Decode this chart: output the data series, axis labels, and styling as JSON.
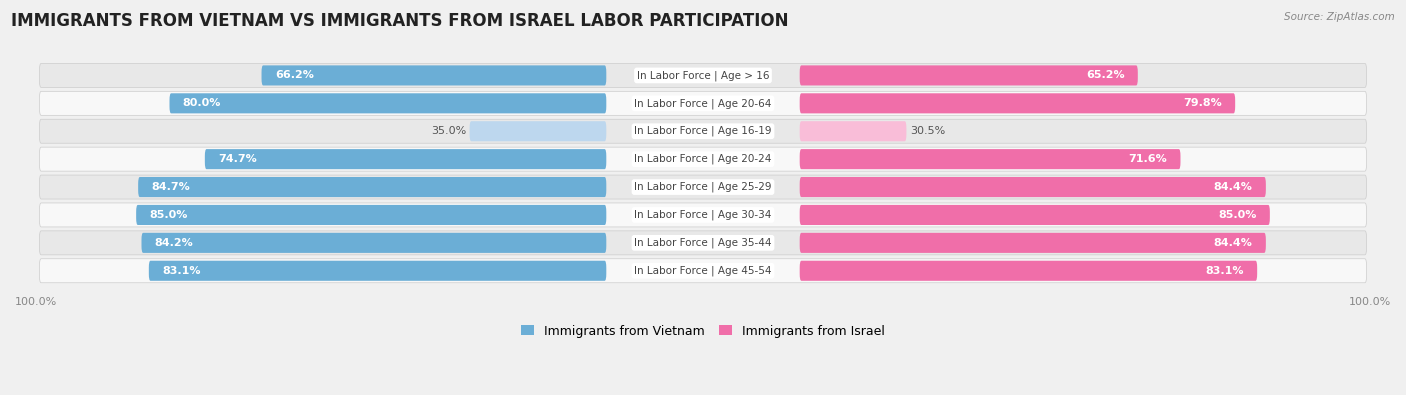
{
  "title": "IMMIGRANTS FROM VIETNAM VS IMMIGRANTS FROM ISRAEL LABOR PARTICIPATION",
  "source": "Source: ZipAtlas.com",
  "categories": [
    "In Labor Force | Age > 16",
    "In Labor Force | Age 20-64",
    "In Labor Force | Age 16-19",
    "In Labor Force | Age 20-24",
    "In Labor Force | Age 25-29",
    "In Labor Force | Age 30-34",
    "In Labor Force | Age 35-44",
    "In Labor Force | Age 45-54"
  ],
  "vietnam_values": [
    66.2,
    80.0,
    35.0,
    74.7,
    84.7,
    85.0,
    84.2,
    83.1
  ],
  "israel_values": [
    65.2,
    79.8,
    30.5,
    71.6,
    84.4,
    85.0,
    84.4,
    83.1
  ],
  "vietnam_color_full": "#6BAED6",
  "vietnam_color_light": "#BDD7EE",
  "israel_color_full": "#F06EA9",
  "israel_color_light": "#F9BDD8",
  "vietnam_label": "Immigrants from Vietnam",
  "israel_label": "Immigrants from Israel",
  "max_value": 100.0,
  "background_color": "#f0f0f0",
  "row_bg_light": "#f8f8f8",
  "row_bg_dark": "#e8e8e8",
  "title_fontsize": 12,
  "value_fontsize": 8,
  "cat_fontsize": 7.5,
  "tick_fontsize": 8
}
